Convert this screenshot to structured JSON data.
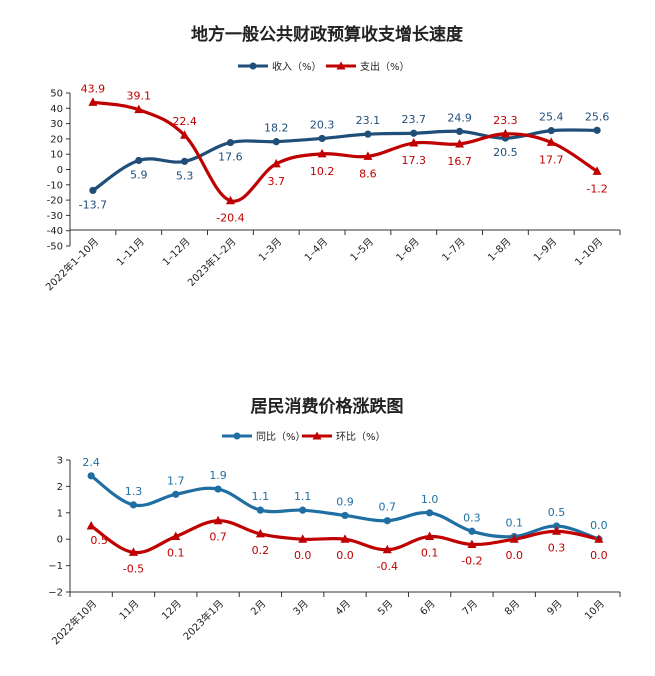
{
  "chart_data": [
    {
      "type": "line",
      "title": "地方一般公共财政预算收支增长速度",
      "categories": [
        "2022年1–10月",
        "1–11月",
        "1–12月",
        "2023年1–2月",
        "1–3月",
        "1–4月",
        "1–5月",
        "1–6月",
        "1–7月",
        "1–8月",
        "1–9月",
        "1–10月"
      ],
      "yticks": [
        "50",
        "40",
        "30",
        "20",
        "10",
        "0",
        "-10",
        "-20",
        "-30",
        "-40",
        "-50"
      ],
      "ylim": [
        -50,
        50
      ],
      "grid": false,
      "legend_position": "top-center",
      "series": [
        {
          "name": "收入（%）",
          "color": "#1f4e79",
          "marker": "circle",
          "values": [
            -13.7,
            5.9,
            5.3,
            17.6,
            18.2,
            20.3,
            23.1,
            23.7,
            24.9,
            20.5,
            25.4,
            25.6
          ],
          "labels": [
            "-13.7",
            "5.9",
            "5.3",
            "17.6",
            "18.2",
            "20.3",
            "23.1",
            "23.7",
            "24.9",
            "20.5",
            "25.4",
            "25.6"
          ]
        },
        {
          "name": "支出（%）",
          "color": "#c00000",
          "marker": "triangle",
          "values": [
            43.9,
            39.1,
            22.4,
            -20.4,
            3.7,
            10.2,
            8.6,
            17.3,
            16.7,
            23.3,
            17.7,
            -1.2
          ],
          "labels": [
            "43.9",
            "39.1",
            "22.4",
            "-20.4",
            "3.7",
            "10.2",
            "8.6",
            "17.3",
            "16.7",
            "23.3",
            "17.7",
            "-1.2"
          ]
        }
      ]
    },
    {
      "type": "line",
      "title": "居民消费价格涨跌图",
      "categories": [
        "2022年10月",
        "11月",
        "12月",
        "2023年1月",
        "2月",
        "3月",
        "4月",
        "5月",
        "6月",
        "7月",
        "8月",
        "9月",
        "10月"
      ],
      "yticks": [
        "3",
        "2",
        "1",
        "0",
        "−1",
        "−2"
      ],
      "ylim": [
        -2,
        3
      ],
      "grid": false,
      "legend_position": "top-center",
      "series": [
        {
          "name": "同比（%）",
          "color": "#1f6fa3",
          "marker": "circle",
          "values": [
            2.4,
            1.3,
            1.7,
            1.9,
            1.1,
            1.1,
            0.9,
            0.7,
            1.0,
            0.3,
            0.1,
            0.5,
            0.0
          ],
          "labels": [
            "2.4",
            "1.3",
            "1.7",
            "1.9",
            "1.1",
            "1.1",
            "0.9",
            "0.7",
            "1.0",
            "0.3",
            "0.1",
            "0.5",
            "0.0"
          ]
        },
        {
          "name": "环比（%）",
          "color": "#c00000",
          "marker": "triangle",
          "values": [
            0.5,
            -0.5,
            0.1,
            0.7,
            0.2,
            0.0,
            0.0,
            -0.4,
            0.1,
            -0.2,
            0.0,
            0.3,
            0.0
          ],
          "labels": [
            "0.5",
            "-0.5",
            "0.1",
            "0.7",
            "0.2",
            "0.0",
            "0.0",
            "-0.4",
            "0.1",
            "-0.2",
            "0.0",
            "0.3",
            "0.0"
          ]
        }
      ]
    }
  ]
}
